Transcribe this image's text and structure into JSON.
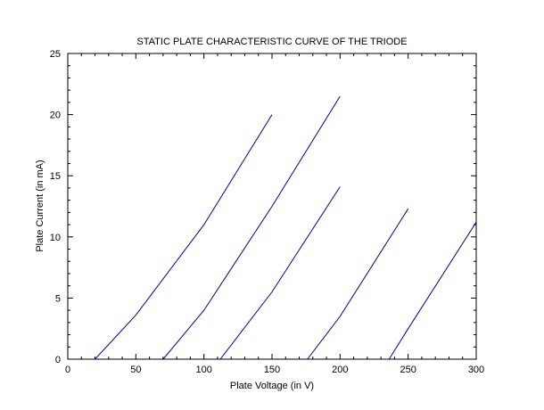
{
  "chart_data": {
    "type": "line",
    "title": "STATIC PLATE CHARACTERISTIC CURVE OF THE TRIODE",
    "xlabel": "Plate Voltage (in V)",
    "ylabel": "Plate Current (in mA)",
    "xlim": [
      0,
      300
    ],
    "ylim": [
      0,
      25
    ],
    "xticks": [
      0,
      50,
      100,
      150,
      200,
      250,
      300
    ],
    "yticks": [
      0,
      5,
      10,
      15,
      20,
      25
    ],
    "grid": false,
    "line_color": "#0000a0",
    "series": [
      {
        "x": [
          20,
          50,
          100,
          150
        ],
        "y": [
          0,
          3.6,
          11,
          20
        ]
      },
      {
        "x": [
          70,
          100,
          150,
          200
        ],
        "y": [
          0,
          4,
          12.5,
          21.5
        ]
      },
      {
        "x": [
          112,
          150,
          200
        ],
        "y": [
          0,
          5.5,
          14.1
        ]
      },
      {
        "x": [
          176,
          200,
          250
        ],
        "y": [
          0,
          3.5,
          12.3
        ]
      },
      {
        "x": [
          236,
          250,
          300
        ],
        "y": [
          0,
          2.5,
          11.2
        ]
      }
    ]
  }
}
